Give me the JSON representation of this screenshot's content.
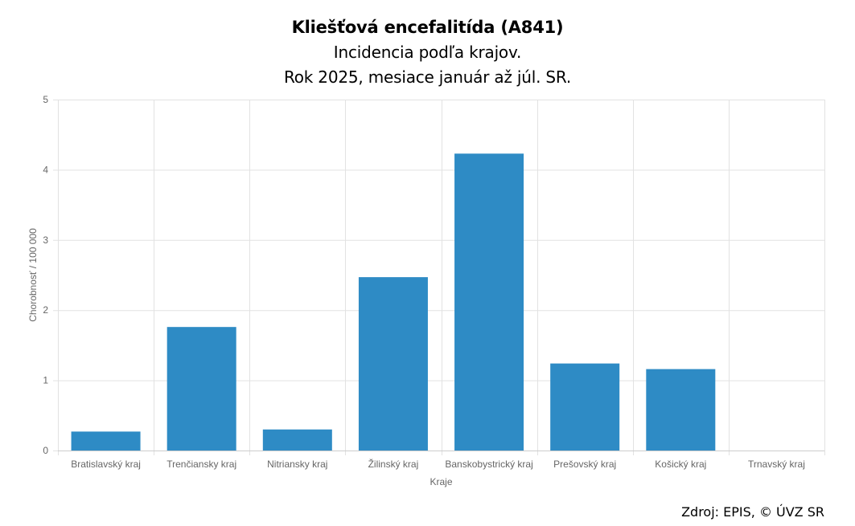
{
  "header": {
    "title": "Kliešťová encefalitída (A841)",
    "subtitle_1": "Incidencia podľa krajov.",
    "subtitle_2": "Rok 2025, mesiace január až júl. SR."
  },
  "footer": {
    "source": "Zdroj: EPIS, © ÚVZ SR"
  },
  "chart_data": {
    "type": "bar",
    "title": "Kliešťová encefalitída (A841)",
    "subtitle": "Incidencia podľa krajov. Rok 2025, mesiace január až júl. SR.",
    "xlabel": "Kraje",
    "ylabel": "Chorobnosť / 100 000",
    "ylim": [
      0,
      5
    ],
    "yticks": [
      "0",
      "1",
      "2",
      "3",
      "4",
      "5"
    ],
    "categories": [
      "Bratislavský kraj",
      "Trenčiansky kraj",
      "Nitriansky kraj",
      "Žilinský kraj",
      "Banskobystrický kraj",
      "Prešovský kraj",
      "Košický kraj",
      "Trnavský kraj"
    ],
    "values": [
      0.27,
      1.76,
      0.3,
      2.47,
      4.23,
      1.24,
      1.16,
      0
    ],
    "bar_color": "#2e8bc5",
    "grid": true,
    "legend": "none"
  }
}
